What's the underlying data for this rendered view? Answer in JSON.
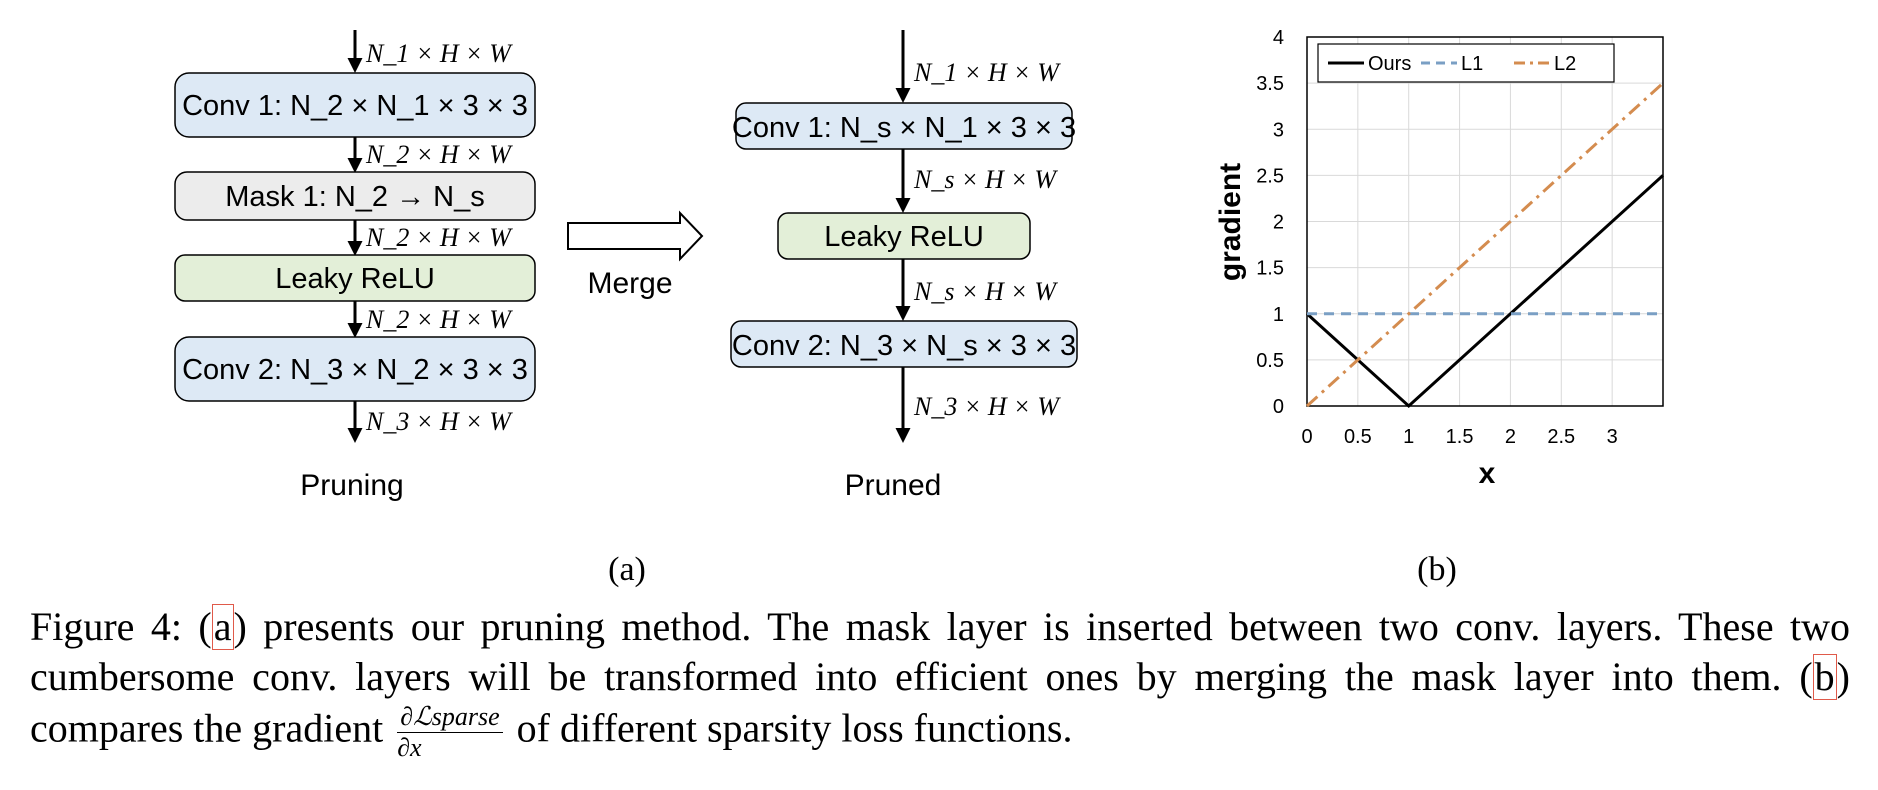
{
  "pruning": {
    "dims": [
      "N_1 × H × W",
      "N_2 × H × W",
      "N_2 × H × W",
      "N_2 × H × W",
      "N_3 × H × W"
    ],
    "conv1": "Conv 1: N_2 × N_1 × 3 × 3",
    "mask1": "Mask 1: N_2 → N_s",
    "relu": "Leaky ReLU",
    "conv2": "Conv 2: N_3 × N_2 × 3 × 3",
    "label": "Pruning"
  },
  "merge_label": "Merge",
  "pruned": {
    "dims": [
      "N_1 × H × W",
      "N_s × H × W",
      "N_s × H × W",
      "N_3 × H × W"
    ],
    "conv1": "Conv 1: N_s × N_1 × 3 × 3",
    "relu": "Leaky ReLU",
    "conv2": "Conv 2: N_3 × N_s × 3 × 3",
    "label": "Pruned"
  },
  "subfig_labels": [
    "(a)",
    "(b)"
  ],
  "colors": {
    "conv": "#dde9f5",
    "mask": "#ececec",
    "relu": "#e3efd8",
    "ours": "#000000",
    "l1": "#7a9fc4",
    "l2": "#d48c4f"
  },
  "chart_data": {
    "type": "line",
    "xlabel": "x",
    "ylabel": "gradient",
    "xlim": [
      0,
      3.5
    ],
    "ylim": [
      0,
      4
    ],
    "xticks": [
      "0",
      "0.5",
      "1",
      "1.5",
      "2",
      "2.5",
      "3"
    ],
    "yticks": [
      "0",
      "0.5",
      "1",
      "1.5",
      "2",
      "2.5",
      "3",
      "3.5",
      "4"
    ],
    "grid": true,
    "legend": "top-left",
    "series": [
      {
        "name": "Ours",
        "style": "solid",
        "color": "#000000",
        "x": [
          0,
          1,
          3.5
        ],
        "y": [
          1,
          0,
          2.5
        ]
      },
      {
        "name": "L1",
        "style": "dashed",
        "color": "#7a9fc4",
        "x": [
          0,
          3.5
        ],
        "y": [
          1,
          1
        ]
      },
      {
        "name": "L2",
        "style": "dashdot",
        "color": "#d48c4f",
        "x": [
          0,
          3.5
        ],
        "y": [
          0,
          3.5
        ]
      }
    ]
  },
  "caption": {
    "p1": "Figure 4: (",
    "ref_a": "a",
    "p2": ") presents our pruning method.  The mask layer is inserted between two conv.  layers. These two cumbersome conv.  layers will be transformed into efficient ones by merging the mask layer into them. (",
    "ref_b": "b",
    "p3": ") compares the gradient ",
    "frac_num": "∂ℒsparse",
    "frac_den": "∂x",
    "p4": " of different sparsity loss functions."
  }
}
